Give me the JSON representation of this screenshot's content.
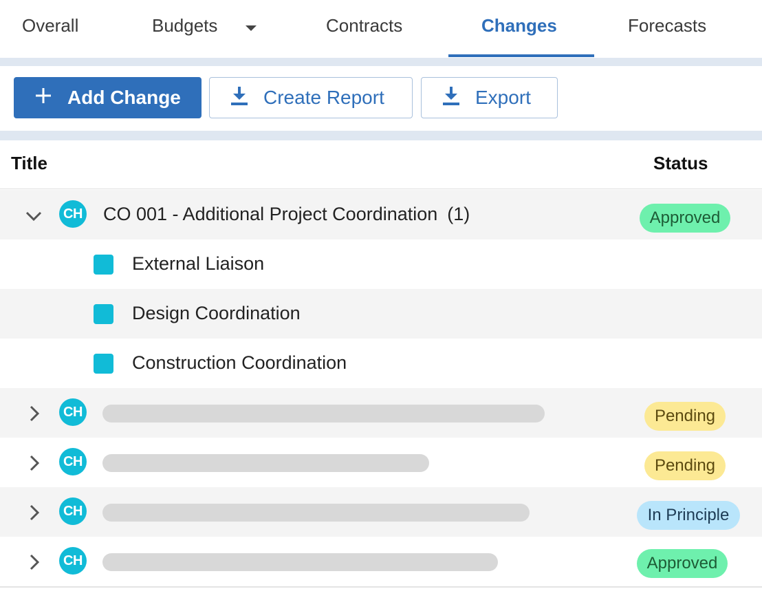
{
  "tabs": [
    {
      "label": "Overall",
      "active": false
    },
    {
      "label": "Budgets",
      "active": false,
      "has_dropdown": true
    },
    {
      "label": "Contracts",
      "active": false
    },
    {
      "label": "Changes",
      "active": true
    },
    {
      "label": "Forecasts",
      "active": false
    }
  ],
  "toolbar": {
    "add_change_label": "Add Change",
    "create_report_label": "Create Report",
    "export_label": "Export"
  },
  "table": {
    "columns": {
      "title": "Title",
      "status": "Status"
    },
    "rows": [
      {
        "avatar": "CH",
        "title": "CO 001 - Additional Project Coordination",
        "count": "(1)",
        "status": "Approved",
        "expanded": true,
        "children": [
          "External Liaison",
          "Design Coordination",
          "Construction Coordination"
        ]
      },
      {
        "avatar": "CH",
        "title_redacted": true,
        "status": "Pending",
        "expanded": false
      },
      {
        "avatar": "CH",
        "title_redacted": true,
        "status": "Pending",
        "expanded": false
      },
      {
        "avatar": "CH",
        "title_redacted": true,
        "status": "In Principle",
        "expanded": false
      },
      {
        "avatar": "CH",
        "title_redacted": true,
        "status": "Approved",
        "expanded": false
      }
    ]
  },
  "colors": {
    "accent": "#2f6fba",
    "avatar": "#11bbd7",
    "approved": "#6ef0ad",
    "pending": "#fce994",
    "in_principle": "#b9e5fb"
  },
  "icons": [
    "plus-icon",
    "download-icon",
    "chevron-down-icon",
    "chevron-right-icon",
    "caret-down-icon"
  ]
}
